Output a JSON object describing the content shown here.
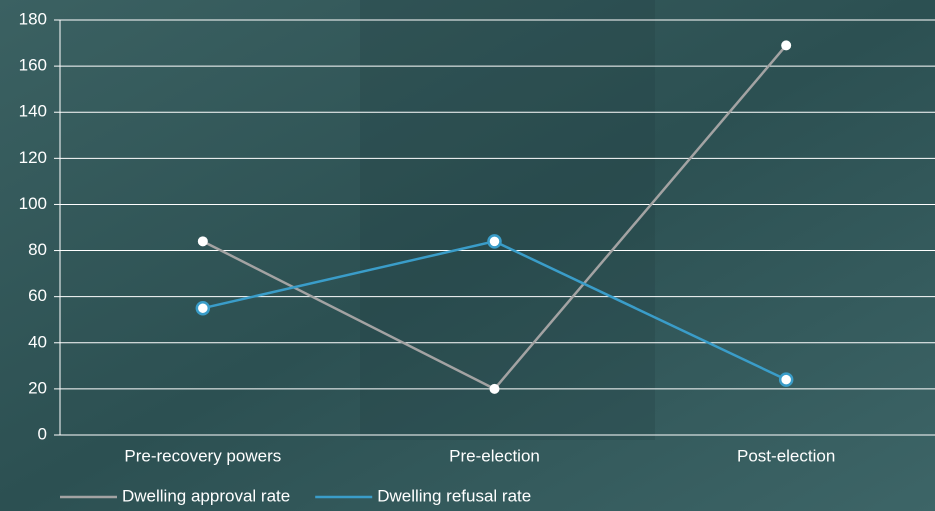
{
  "chart_data": {
    "type": "line",
    "categories": [
      "Pre-recovery powers",
      "Pre-election",
      "Post-election"
    ],
    "series": [
      {
        "name": "Dwelling approval rate",
        "color": "#a3a3a3",
        "values": [
          84,
          20,
          169
        ]
      },
      {
        "name": "Dwelling refusal rate",
        "color": "#3a9dc9",
        "values": [
          55,
          84,
          24
        ]
      }
    ],
    "ylim": [
      0,
      180
    ],
    "yticks": [
      0,
      20,
      40,
      60,
      80,
      100,
      120,
      140,
      160,
      180
    ],
    "grid": true
  }
}
